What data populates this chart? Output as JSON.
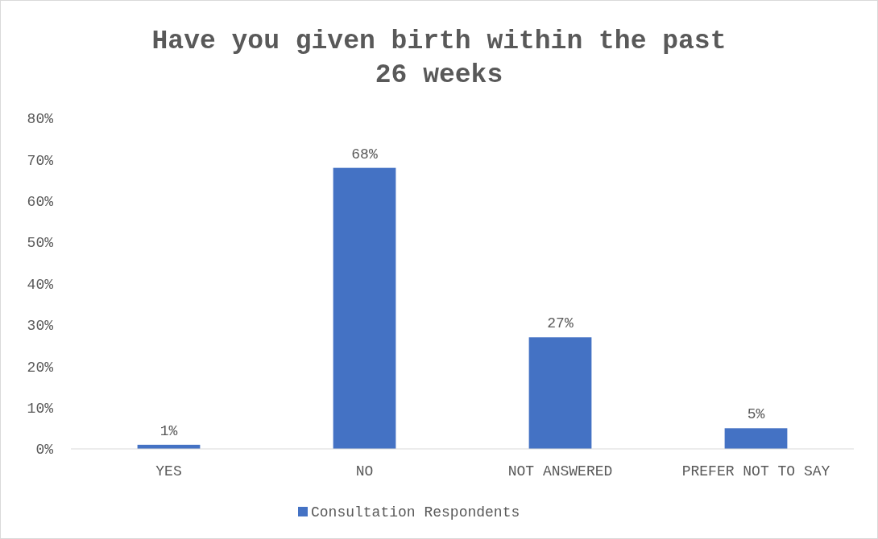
{
  "chart_data": {
    "type": "bar",
    "title": "Have you given birth within the past 26 weeks",
    "categories": [
      "YES",
      "NO",
      "NOT ANSWERED",
      "PREFER NOT TO SAY"
    ],
    "series": [
      {
        "name": "Consultation Respondents",
        "color": "#4472c4",
        "values": [
          1,
          68,
          27,
          5
        ],
        "value_labels": [
          "1%",
          "68%",
          "27%",
          "5%"
        ]
      }
    ],
    "ylim": [
      0,
      80
    ],
    "yticks": [
      {
        "value": 0,
        "label": "0%"
      },
      {
        "value": 10,
        "label": "10%"
      },
      {
        "value": 20,
        "label": "20%"
      },
      {
        "value": 30,
        "label": "30%"
      },
      {
        "value": 40,
        "label": "40%"
      },
      {
        "value": 50,
        "label": "50%"
      },
      {
        "value": 60,
        "label": "60%"
      },
      {
        "value": 70,
        "label": "70%"
      },
      {
        "value": 80,
        "label": "80%"
      }
    ],
    "grid": false,
    "legend": "bottom"
  }
}
